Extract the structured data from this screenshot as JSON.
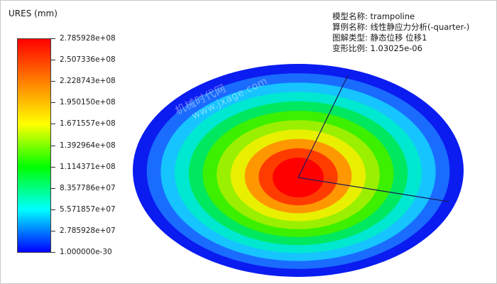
{
  "legend": {
    "title": "URES (mm)",
    "labels": [
      "2.785928e+08",
      "2.507336e+08",
      "2.228743e+08",
      "1.950150e+08",
      "1.671557e+08",
      "1.392964e+08",
      "1.114371e+08",
      "8.357786e+07",
      "5.571857e+07",
      "2.785928e+07",
      "1.000000e-30"
    ],
    "colors": [
      "#ff0000",
      "#ff8000",
      "#ffff00",
      "#00ff00",
      "#00ffff",
      "#0000ff"
    ]
  },
  "info": {
    "model_name": "模型名称: trampoline",
    "study_name": "算例名称: 线性静应力分析(-quarter-)",
    "plot_type": "图解类型: 静态位移 位移1",
    "deformation_scale": "变形比例: 1.03025e-06"
  },
  "watermark": {
    "line1": "机械时代网",
    "line2": "www.jxage.com"
  },
  "contour": {
    "bands": [
      {
        "level": 0.0,
        "color": "#0a1cf0"
      },
      {
        "level": 0.1,
        "color": "#1a6cff"
      },
      {
        "level": 0.2,
        "color": "#16c4ff"
      },
      {
        "level": 0.3,
        "color": "#00e8d0"
      },
      {
        "level": 0.4,
        "color": "#00e860"
      },
      {
        "level": 0.5,
        "color": "#3cf000"
      },
      {
        "level": 0.6,
        "color": "#9af000"
      },
      {
        "level": 0.7,
        "color": "#e8f000"
      },
      {
        "level": 0.8,
        "color": "#ff9800"
      },
      {
        "level": 0.9,
        "color": "#ff3c00"
      },
      {
        "level": 1.0,
        "color": "#ff0000"
      }
    ]
  }
}
